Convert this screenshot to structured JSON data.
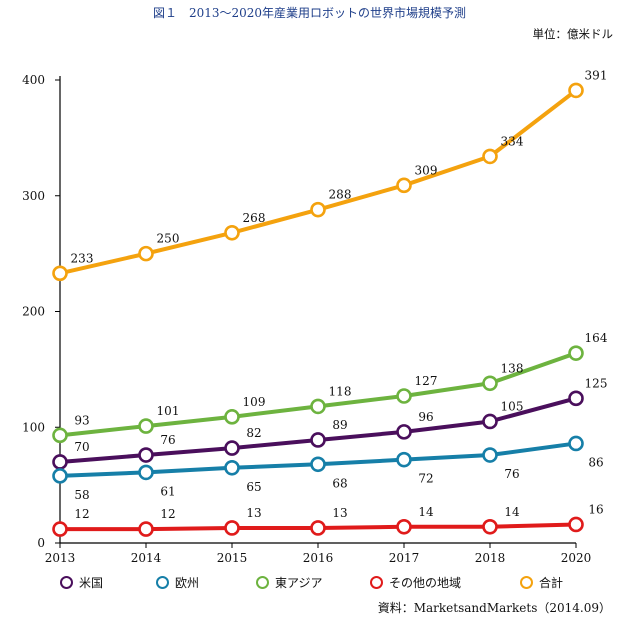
{
  "chart_data": {
    "type": "line",
    "title": "図１　2013〜2020年産業用ロボットの世界市場規模予測",
    "unit_label": "単位：億米ドル",
    "source": "資料：MarketsandMarkets（2014.09）",
    "x": [
      "2013",
      "2014",
      "2015",
      "2016",
      "2017",
      "2018",
      "2020"
    ],
    "ylim": [
      0,
      400
    ],
    "yticks": [
      "0",
      "100",
      "200",
      "300",
      "400"
    ],
    "grid": false,
    "legend_position": "bottom",
    "series": [
      {
        "name": "米国",
        "color": "#4a0f5c",
        "values": [
          70,
          76,
          82,
          89,
          96,
          105,
          125
        ]
      },
      {
        "name": "欧州",
        "color": "#167fa8",
        "values": [
          58,
          61,
          65,
          68,
          72,
          76,
          86
        ]
      },
      {
        "name": "東アジア",
        "color": "#6db33f",
        "values": [
          93,
          101,
          109,
          118,
          127,
          138,
          164
        ]
      },
      {
        "name": "その他の地域",
        "color": "#e01b1b",
        "values": [
          12,
          12,
          13,
          13,
          14,
          14,
          16
        ]
      },
      {
        "name": "合計",
        "color": "#f4a20e",
        "values": [
          233,
          250,
          268,
          288,
          309,
          334,
          391
        ]
      }
    ]
  }
}
